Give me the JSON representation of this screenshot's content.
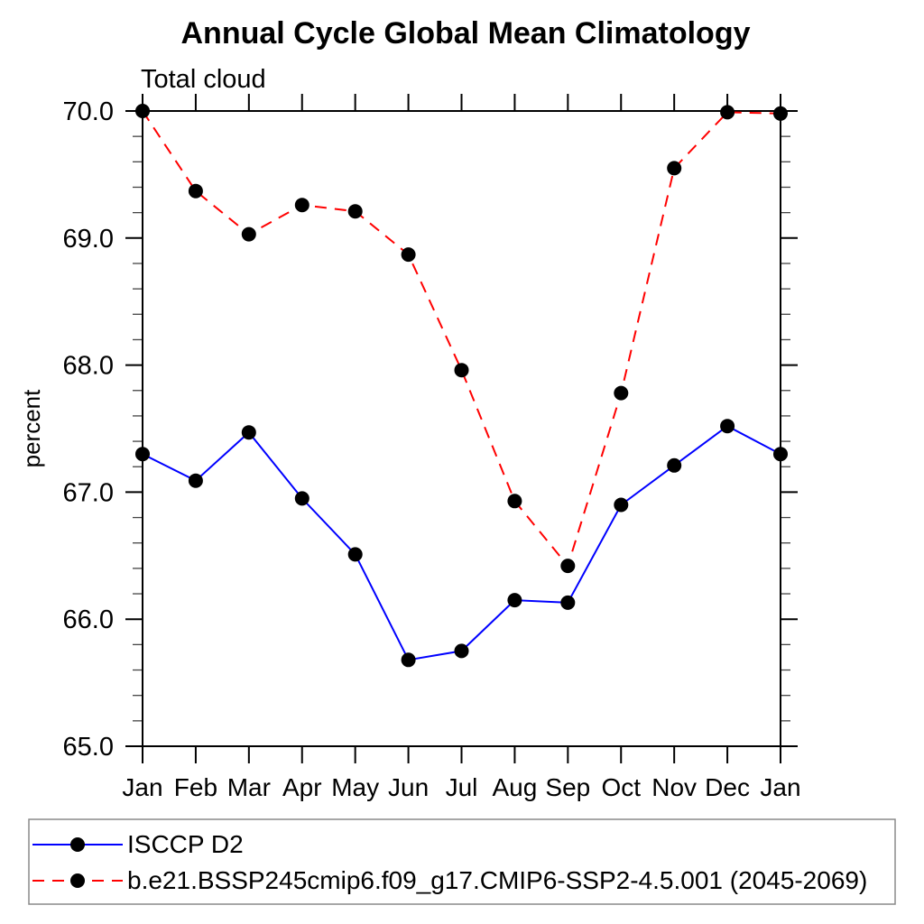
{
  "chart": {
    "title": "Annual Cycle Global Mean Climatology",
    "subtitle": "Total cloud",
    "ylabel": "percent"
  },
  "chart_data": {
    "type": "line",
    "title": "Annual Cycle Global Mean Climatology",
    "subtitle": "Total cloud",
    "xlabel": "",
    "ylabel": "percent",
    "categories": [
      "Jan",
      "Feb",
      "Mar",
      "Apr",
      "May",
      "Jun",
      "Jul",
      "Aug",
      "Sep",
      "Oct",
      "Nov",
      "Dec",
      "Jan"
    ],
    "ylim": [
      65.0,
      70.0
    ],
    "ytick_major_step": 1.0,
    "ytick_minor_step": 0.2,
    "ytick_labels": [
      "65.0",
      "66.0",
      "67.0",
      "68.0",
      "69.0",
      "70.0"
    ],
    "grid": false,
    "legend": {
      "position": "bottom-left",
      "border_color": "#8a8a8a",
      "marker_color": "#000000"
    },
    "series": [
      {
        "name": "ISCCP D2",
        "color": "#0000ff",
        "line_style": "solid",
        "marker": "filled-circle",
        "marker_color": "#000000",
        "values": [
          67.3,
          67.09,
          67.47,
          66.95,
          66.51,
          65.68,
          65.75,
          66.15,
          66.13,
          66.9,
          67.21,
          67.52,
          67.3
        ]
      },
      {
        "name": "b.e21.BSSP245cmip6.f09_g17.CMIP6-SSP2-4.5.001 (2045-2069)",
        "color": "#ff0000",
        "line_style": "dashed",
        "marker": "filled-circle",
        "marker_color": "#000000",
        "values": [
          70.0,
          69.37,
          69.03,
          69.26,
          69.21,
          68.87,
          67.96,
          66.93,
          66.42,
          67.78,
          69.55,
          69.99,
          69.98
        ]
      }
    ]
  }
}
